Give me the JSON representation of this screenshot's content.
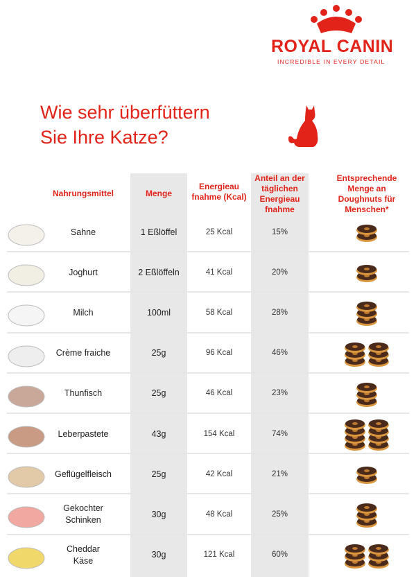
{
  "header": {
    "brand": "ROYAL CANIN",
    "tagline": "INCREDIBLE IN EVERY DETAIL",
    "title": [
      "Wie sehr überfüttern",
      "Sie Ihre Katze?"
    ]
  },
  "table": {
    "columns": [
      "Nahrungsmittel",
      "Menge",
      "Energieau\nfnahme (Kcal)",
      "Anteil an der\ntäglichen\nEnergieau\nfnahme",
      "Entsprechende\nMenge an\nDoughnuts für\nMenschen*"
    ],
    "rows": [
      {
        "food": "Sahne",
        "amount": "1 Eßlöffel",
        "energy": "25 Kcal",
        "share": "15%",
        "doughnuts": 2
      },
      {
        "food": "Joghurt",
        "amount": "2 Eßlöffeln",
        "energy": "41 Kcal",
        "share": "20%",
        "doughnuts": 2
      },
      {
        "food": "Milch",
        "amount": "100ml",
        "energy": "58 Kcal",
        "share": "28%",
        "doughnuts": 3
      },
      {
        "food": "Crème fraiche",
        "amount": "25g",
        "energy": "96 Kcal",
        "share": "46%",
        "doughnuts": 6
      },
      {
        "food": "Thunfisch",
        "amount": "25g",
        "energy": "46 Kcal",
        "share": "23%",
        "doughnuts": 3
      },
      {
        "food": "Leberpastete",
        "amount": "43g",
        "energy": "154 Kcal",
        "share": "74%",
        "doughnuts": 8
      },
      {
        "food": "Geflügelfleisch",
        "amount": "25g",
        "energy": "42 Kcal",
        "share": "21%",
        "doughnuts": 2
      },
      {
        "food": "Gekochter\nSchinken",
        "amount": "30g",
        "energy": "48 Kcal",
        "share": "25%",
        "doughnuts": 3
      },
      {
        "food": "Cheddar\nKäse",
        "amount": "30g",
        "energy": "121 Kcal",
        "share": "60%",
        "doughnuts": 6
      }
    ]
  }
}
